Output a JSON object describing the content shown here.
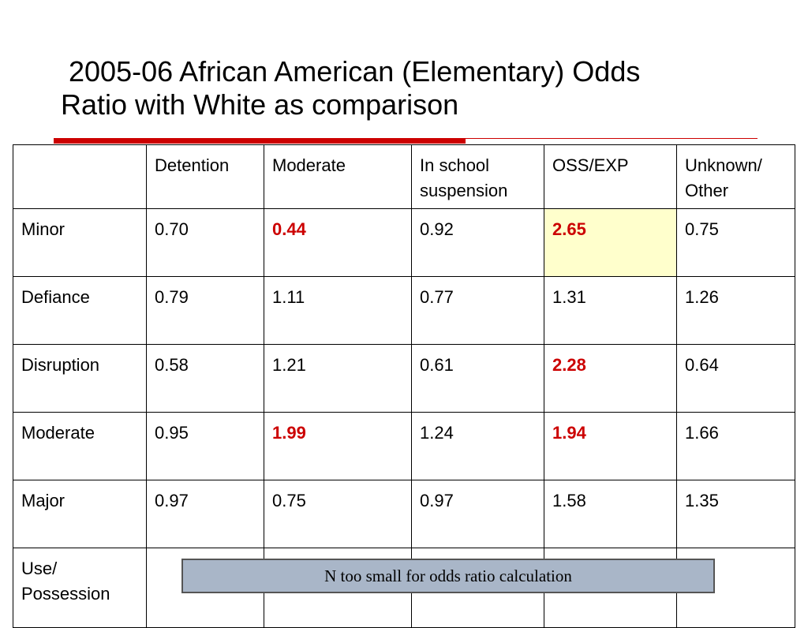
{
  "title": {
    "line1": "2005-06 African American (Elementary) Odds",
    "line2": "Ratio with White as comparison"
  },
  "colors": {
    "accent": "#cc0000",
    "highlight_cell": "#ffffcc",
    "overlay_bg": "#a9b6c8"
  },
  "table": {
    "headers": [
      "",
      "Detention",
      "Moderate",
      "In school suspension",
      "OSS/EXP",
      "Unknown/ Other"
    ],
    "rows": [
      {
        "label": "Minor",
        "cells": [
          "0.70",
          "0.44",
          "0.92",
          "2.65",
          "0.75"
        ]
      },
      {
        "label": "Defiance",
        "cells": [
          "0.79",
          "1.11",
          "0.77",
          "1.31",
          "1.26"
        ]
      },
      {
        "label": "Disruption",
        "cells": [
          "0.58",
          "1.21",
          "0.61",
          "2.28",
          "0.64"
        ]
      },
      {
        "label": "Moderate",
        "cells": [
          "0.95",
          "1.99",
          "1.24",
          "1.94",
          "1.66"
        ]
      },
      {
        "label": "Major",
        "cells": [
          "0.97",
          "0.75",
          "0.97",
          "1.58",
          "1.35"
        ]
      },
      {
        "label": "Use/ Possession",
        "cells": [
          "",
          "",
          "",
          "",
          ""
        ]
      }
    ],
    "emphasized_cells": [
      "Minor|Moderate",
      "Minor|OSS/EXP",
      "Disruption|OSS/EXP",
      "Moderate|Moderate",
      "Moderate|OSS/EXP"
    ],
    "highlighted_cell": "Minor|OSS/EXP"
  },
  "overlay_note": "N too small for odds ratio calculation"
}
